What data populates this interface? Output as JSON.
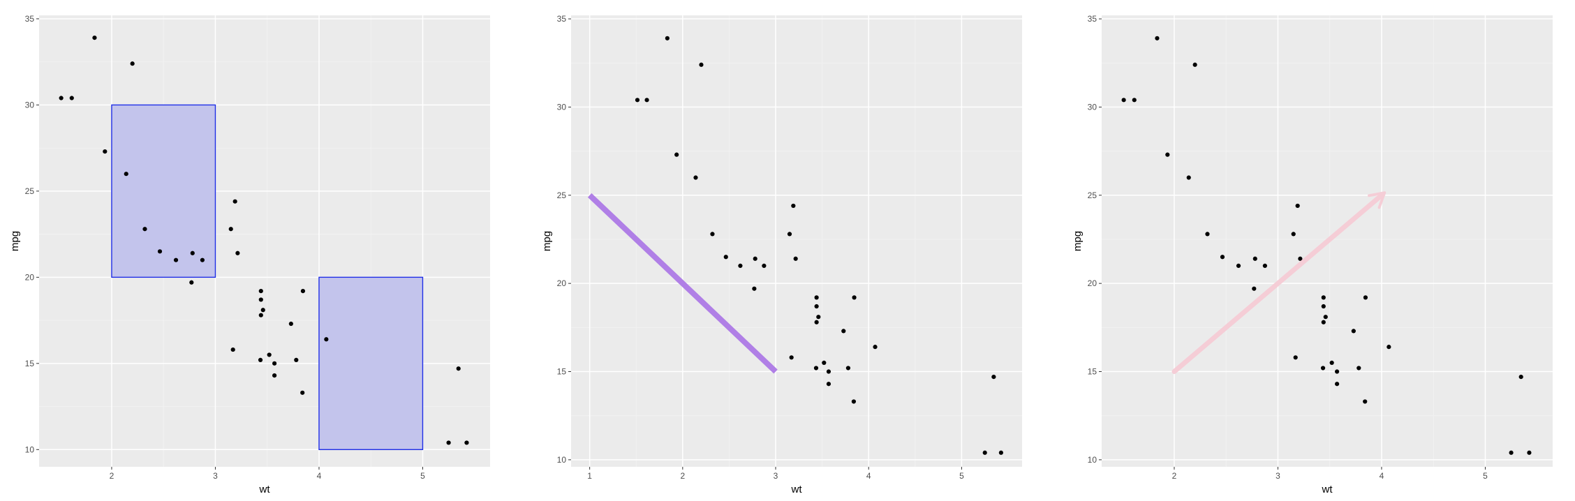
{
  "colors": {
    "panel_background": "#ebebeb",
    "grid_major": "#ffffff",
    "grid_minor": "#f2f2f2",
    "tick_label": "#4d4d4d",
    "point": "#000000",
    "rect_fill": "#c3c4ec",
    "rect_stroke": "#1f2ee6",
    "segment": "#b07fe6",
    "arrow": "#f5cdd6"
  },
  "points": {
    "wt": [
      2.62,
      2.875,
      2.32,
      3.215,
      3.44,
      3.46,
      3.57,
      3.19,
      3.15,
      3.44,
      3.44,
      4.07,
      3.73,
      3.78,
      5.25,
      5.424,
      5.345,
      2.2,
      1.615,
      1.835,
      2.465,
      3.52,
      3.435,
      3.84,
      3.845,
      1.935,
      2.14,
      1.513,
      3.17,
      2.77,
      3.57,
      2.78
    ],
    "mpg": [
      21.0,
      21.0,
      22.8,
      21.4,
      18.7,
      18.1,
      14.3,
      24.4,
      22.8,
      19.2,
      17.8,
      16.4,
      17.3,
      15.2,
      10.4,
      10.4,
      14.7,
      32.4,
      30.4,
      33.9,
      21.5,
      15.5,
      15.2,
      13.3,
      19.2,
      27.3,
      26.0,
      30.4,
      15.8,
      19.7,
      15.0,
      21.4
    ]
  },
  "chart_data": [
    {
      "type": "scatter",
      "xlabel": "wt",
      "ylabel": "mpg",
      "xlim": [
        1.3,
        5.65
      ],
      "ylim": [
        9.0,
        35.2
      ],
      "x_ticks": [
        2,
        3,
        4,
        5
      ],
      "x_tick_labels": [
        "2",
        "3",
        "4",
        "5"
      ],
      "y_ticks": [
        10,
        15,
        20,
        25,
        30,
        35
      ],
      "y_tick_labels": [
        "10",
        "15",
        "20",
        "25",
        "30",
        "35"
      ],
      "grid": true,
      "annotations": [
        {
          "kind": "rect",
          "xmin": 2,
          "xmax": 3,
          "ymin": 20,
          "ymax": 30
        },
        {
          "kind": "rect",
          "xmin": 4,
          "xmax": 5,
          "ymin": 10,
          "ymax": 20
        }
      ]
    },
    {
      "type": "scatter",
      "xlabel": "wt",
      "ylabel": "mpg",
      "xlim": [
        0.8,
        5.65
      ],
      "ylim": [
        9.6,
        35.2
      ],
      "x_ticks": [
        1,
        2,
        3,
        4,
        5
      ],
      "x_tick_labels": [
        "1",
        "2",
        "3",
        "4",
        "5"
      ],
      "y_ticks": [
        10,
        15,
        20,
        25,
        30,
        35
      ],
      "y_tick_labels": [
        "10",
        "15",
        "20",
        "25",
        "30",
        "35"
      ],
      "grid": true,
      "annotations": [
        {
          "kind": "segment",
          "x": 1,
          "y": 25,
          "xend": 3,
          "yend": 15
        }
      ]
    },
    {
      "type": "scatter",
      "xlabel": "wt",
      "ylabel": "mpg",
      "xlim": [
        1.3,
        5.65
      ],
      "ylim": [
        9.6,
        35.2
      ],
      "x_ticks": [
        2,
        3,
        4,
        5
      ],
      "x_tick_labels": [
        "2",
        "3",
        "4",
        "5"
      ],
      "y_ticks": [
        10,
        15,
        20,
        25,
        30,
        35
      ],
      "y_tick_labels": [
        "10",
        "15",
        "20",
        "25",
        "30",
        "35"
      ],
      "grid": true,
      "annotations": [
        {
          "kind": "arrow",
          "x": 2,
          "y": 15,
          "xend": 4,
          "yend": 25
        }
      ]
    }
  ]
}
